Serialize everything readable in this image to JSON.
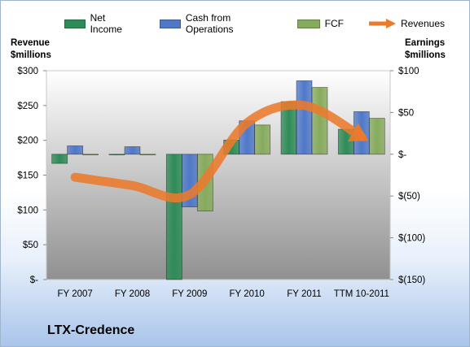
{
  "chart_data": {
    "type": "bar",
    "categories": [
      "FY 2007",
      "FY 2008",
      "FY 2009",
      "FY 2010",
      "FY 2011",
      "TTM 10-2011"
    ],
    "series": [
      {
        "name": "Net Income",
        "values": [
          -11,
          0,
          -150,
          17,
          63,
          30
        ],
        "axis": "right",
        "color": "#2e8b57"
      },
      {
        "name": "Cash from Operations",
        "values": [
          10,
          9,
          -63,
          40,
          88,
          51
        ],
        "axis": "right",
        "color": "#4f78c8"
      },
      {
        "name": "FCF",
        "values": [
          0,
          0,
          -68,
          35,
          80,
          43
        ],
        "axis": "right",
        "color": "#86ab5c"
      },
      {
        "name": "Revenues",
        "values": [
          147,
          135,
          122,
          225,
          250,
          205
        ],
        "axis": "left",
        "color": "#ea7a2c",
        "style": "curved-arrow"
      }
    ],
    "left_axis": {
      "label_line1": "Revenue",
      "label_line2": "$millions",
      "ylim": [
        0,
        300
      ],
      "ticks": [
        "$-",
        "$50",
        "$100",
        "$150",
        "$200",
        "$250",
        "$300"
      ]
    },
    "right_axis": {
      "label_line1": "Earnings",
      "label_line2": "$millions",
      "ylim": [
        -150,
        100
      ],
      "ticks": [
        "$(150)",
        "$(100)",
        "$(50)",
        "$-",
        "$50",
        "$100"
      ]
    },
    "legend_position": "top",
    "grid": false
  },
  "company": "LTX-Credence"
}
